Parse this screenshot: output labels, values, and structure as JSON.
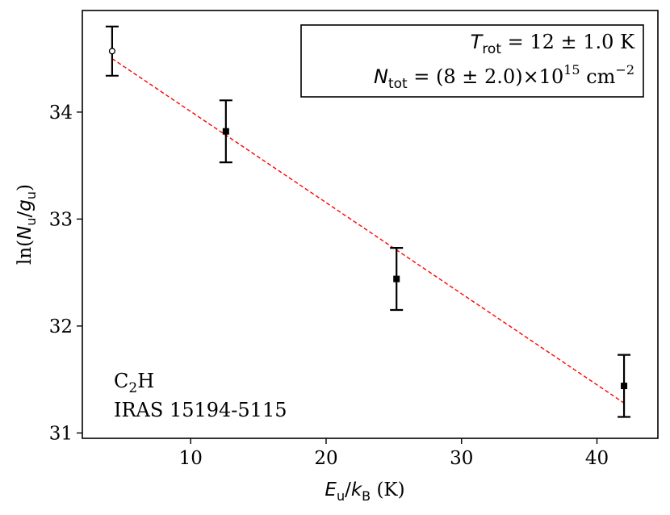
{
  "chart_data": {
    "type": "scatter",
    "title": "",
    "xlabel": {
      "var": "E",
      "sub1": "u",
      "sep": "/",
      "var2": "k",
      "sub2": "B",
      "unit": " (K)"
    },
    "ylabel": {
      "prefix": "ln(",
      "var": "N",
      "sub1": "u",
      "sep": "/",
      "var2": "g",
      "sub2": "u",
      "suffix": ")"
    },
    "xlim": [
      2.0,
      44.5
    ],
    "ylim": [
      30.95,
      34.95
    ],
    "xticks": [
      10,
      20,
      30,
      40
    ],
    "yticks": [
      31,
      32,
      33,
      34
    ],
    "grid": false,
    "points": [
      {
        "x": 4.2,
        "y": 34.57,
        "yerr": 0.23,
        "marker": "open-circle"
      },
      {
        "x": 12.6,
        "y": 33.82,
        "yerr": 0.29,
        "marker": "square"
      },
      {
        "x": 25.2,
        "y": 32.44,
        "yerr": 0.29,
        "marker": "square"
      },
      {
        "x": 42.0,
        "y": 31.44,
        "yerr": 0.29,
        "marker": "square"
      }
    ],
    "fit": {
      "x": [
        4.2,
        42.0
      ],
      "y": [
        34.5,
        31.28
      ],
      "color": "#ff0000",
      "style": "dashed"
    },
    "result_box": {
      "line1": {
        "var": "T",
        "sub": "rot",
        "text": " = 12 ± 1.0 K"
      },
      "line2": {
        "var": "N",
        "sub": "tot",
        "text": " = (8 ± 2.0)×10",
        "sup": "15",
        "unit": " cm",
        "unit_sup": "−2"
      }
    },
    "annotation": {
      "molecule_main": "C",
      "molecule_sub": "2",
      "molecule_tail": "H",
      "source": "IRAS 15194-5115"
    }
  }
}
